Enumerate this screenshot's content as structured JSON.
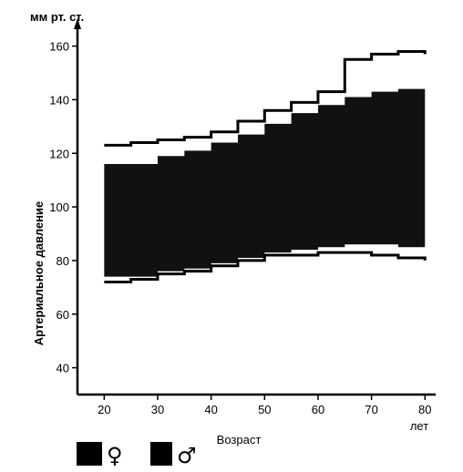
{
  "chart_data": {
    "type": "area",
    "ylabel": "Артериальное давление",
    "yunit": "мм рт. ст.",
    "xlabel": "Возраст",
    "xunit": "лет",
    "xlim": [
      15,
      82
    ],
    "ylim": [
      30,
      167
    ],
    "xticks": [
      20,
      30,
      40,
      50,
      60,
      70,
      80
    ],
    "yticks": [
      40,
      60,
      80,
      100,
      120,
      140,
      160
    ],
    "grid": false,
    "legend": {
      "placement": "bottom-left",
      "entries": [
        {
          "symbol": "♀",
          "fill": "#111111"
        },
        {
          "symbol": "♂",
          "fill": "#3a3a3a"
        }
      ]
    },
    "series": [
      {
        "symbol": "♀",
        "role": "systolic",
        "x": [
          20,
          30,
          35,
          40,
          45,
          50,
          55,
          60,
          65,
          70,
          75,
          80
        ],
        "y": [
          116,
          119,
          121,
          124,
          127,
          131,
          135,
          138,
          141,
          143,
          144,
          145
        ]
      },
      {
        "symbol": "♀",
        "role": "diastolic",
        "x": [
          20,
          30,
          35,
          40,
          45,
          50,
          55,
          60,
          65,
          70,
          75,
          80
        ],
        "y": [
          74,
          76,
          77,
          79,
          81,
          83,
          84,
          85,
          86,
          86,
          85,
          85
        ]
      },
      {
        "symbol": "♂",
        "role": "systolic",
        "x": [
          20,
          25,
          30,
          35,
          40,
          45,
          50,
          55,
          60,
          65,
          70,
          75,
          80
        ],
        "y": [
          123,
          124,
          125,
          126,
          128,
          132,
          136,
          139,
          143,
          155,
          157,
          158,
          157
        ]
      },
      {
        "symbol": "♂",
        "role": "diastolic",
        "x": [
          20,
          25,
          30,
          35,
          40,
          45,
          50,
          55,
          60,
          65,
          70,
          75,
          80
        ],
        "y": [
          72,
          73,
          75,
          76,
          78,
          80,
          82,
          82,
          83,
          83,
          82,
          81,
          80
        ]
      }
    ],
    "colors": {
      "female_band": "#111111",
      "male_line": "#000000",
      "axis": "#000000"
    }
  }
}
